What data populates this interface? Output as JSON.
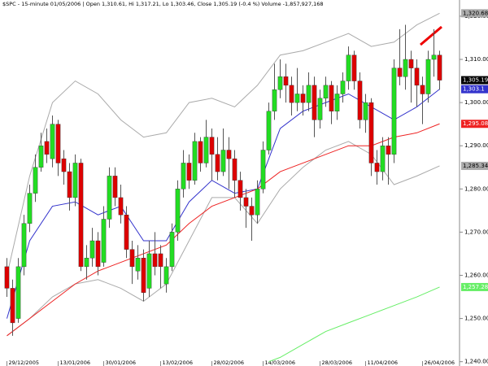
{
  "chart_data": {
    "type": "candlestick",
    "title": "$SPC - 15-minute 01/05/2006 | Open 1,310.61, Hi 1,317.21, Lo 1,303.46, Close 1,305.19 (-0.4 %) Volume -1,857,927,168",
    "categories": [
      "29/12/2005",
      null,
      null,
      null,
      null,
      null,
      null,
      null,
      null,
      "13/01/2006",
      null,
      null,
      null,
      null,
      null,
      null,
      null,
      "30/01/2006",
      null,
      null,
      null,
      null,
      null,
      null,
      null,
      null,
      null,
      "13/02/2006",
      null,
      null,
      null,
      null,
      null,
      null,
      null,
      null,
      "28/02/2006",
      null,
      null,
      null,
      null,
      null,
      null,
      null,
      null,
      "14/03/2006",
      null,
      null,
      null,
      null,
      null,
      null,
      null,
      null,
      null,
      "28/03/2006",
      null,
      null,
      null,
      null,
      null,
      null,
      null,
      "11/04/2006",
      null,
      null,
      null,
      null,
      null,
      null,
      null,
      null,
      null,
      "26/04/2006",
      null,
      null,
      null
    ],
    "open": [
      1262,
      1257,
      1250,
      1262,
      1272,
      1279,
      1285,
      1291,
      1287,
      1295,
      1287,
      1284,
      1278,
      1286,
      1262,
      1264,
      1268,
      1263,
      1273,
      1283,
      1278,
      1274,
      1266,
      1261,
      1264,
      1257,
      1265,
      1265,
      1258,
      1262,
      1270,
      1280,
      1286,
      1282,
      1291,
      1286,
      1292,
      1288,
      1284,
      1289,
      1287,
      1282,
      1278,
      1276,
      1274,
      1280,
      1289,
      1298,
      1303,
      1306,
      1304,
      1300,
      1302,
      1300,
      1304,
      1296,
      1301,
      1304,
      1298,
      1302,
      1305,
      1311,
      1305,
      1296,
      1300,
      1286,
      1284,
      1290,
      1288,
      1308,
      1306,
      1310,
      1308,
      1304,
      1302,
      1310,
      1311
    ],
    "high": [
      1264,
      1259,
      1264,
      1274,
      1281,
      1288,
      1293,
      1294,
      1297,
      1296,
      1289,
      1286,
      1288,
      1287,
      1267,
      1271,
      1270,
      1276,
      1285,
      1285,
      1281,
      1276,
      1268,
      1267,
      1266,
      1268,
      1270,
      1267,
      1264,
      1272,
      1282,
      1289,
      1288,
      1293,
      1292,
      1296,
      1294,
      1292,
      1294,
      1292,
      1289,
      1284,
      1280,
      1278,
      1282,
      1291,
      1300,
      1309,
      1310,
      1309,
      1306,
      1308,
      1304,
      1307,
      1306,
      1303,
      1306,
      1305,
      1304,
      1307,
      1313,
      1312,
      1307,
      1302,
      1301,
      1289,
      1292,
      1292,
      1310,
      1317,
      1318,
      1312,
      1310,
      1306,
      1312,
      1317,
      1312
    ],
    "low": [
      1255,
      1246,
      1249,
      1260,
      1270,
      1277,
      1284,
      1286,
      1285,
      1283,
      1281,
      1275,
      1276,
      1261,
      1259,
      1262,
      1260,
      1262,
      1271,
      1276,
      1272,
      1264,
      1258,
      1259,
      1254,
      1255,
      1260,
      1257,
      1256,
      1261,
      1268,
      1278,
      1280,
      1281,
      1284,
      1285,
      1282,
      1282,
      1283,
      1280,
      1278,
      1275,
      1271,
      1268,
      1272,
      1279,
      1288,
      1296,
      1301,
      1300,
      1297,
      1298,
      1297,
      1298,
      1292,
      1294,
      1299,
      1295,
      1296,
      1300,
      1303,
      1303,
      1294,
      1293,
      1283,
      1281,
      1282,
      1281,
      1286,
      1304,
      1303,
      1300,
      1299,
      1295,
      1300,
      1306,
      1303
    ],
    "close": [
      1257,
      1249,
      1262,
      1272,
      1279,
      1285,
      1290,
      1288,
      1295,
      1286,
      1284,
      1278,
      1286,
      1262,
      1264,
      1268,
      1262,
      1273,
      1283,
      1278,
      1274,
      1266,
      1262,
      1264,
      1256,
      1265,
      1262,
      1262,
      1262,
      1270,
      1280,
      1286,
      1282,
      1291,
      1286,
      1292,
      1288,
      1284,
      1289,
      1287,
      1282,
      1278,
      1276,
      1274,
      1280,
      1289,
      1298,
      1303,
      1306,
      1304,
      1300,
      1302,
      1300,
      1304,
      1296,
      1301,
      1304,
      1298,
      1302,
      1305,
      1311,
      1305,
      1296,
      1300,
      1286,
      1284,
      1290,
      1288,
      1308,
      1306,
      1310,
      1308,
      1304,
      1302,
      1310,
      1311,
      1305.19
    ],
    "close_label": "1,305.19",
    "up_color": "#22dd22",
    "down_color": "#dd0000",
    "overlays": [
      {
        "color": "#aaaaaa",
        "x": [
          0,
          4,
          8,
          12,
          16,
          20,
          24,
          28,
          32,
          36,
          40,
          44,
          48,
          52,
          56,
          60,
          64,
          68,
          72,
          76
        ],
        "values": [
          1260,
          1283,
          1300,
          1305,
          1302,
          1296,
          1292,
          1293,
          1300,
          1301,
          1299,
          1304,
          1311,
          1312,
          1314,
          1316,
          1313,
          1314,
          1318,
          1320.68
        ],
        "last_label": "1,320.68"
      },
      {
        "color": "#aaaaaa",
        "x": [
          0,
          4,
          8,
          12,
          16,
          20,
          24,
          28,
          32,
          36,
          40,
          44,
          48,
          52,
          56,
          60,
          64,
          68,
          72,
          76
        ],
        "values": [
          1246,
          1250,
          1255,
          1258,
          1259,
          1257,
          1254,
          1258,
          1268,
          1278,
          1278,
          1272,
          1280,
          1285,
          1289,
          1291,
          1288,
          1281,
          1283,
          1285.34
        ],
        "last_label": "1,285.34"
      },
      {
        "color": "#3333cc",
        "x": [
          0,
          4,
          8,
          12,
          16,
          20,
          24,
          28,
          32,
          36,
          40,
          44,
          48,
          52,
          56,
          60,
          64,
          68,
          72,
          76
        ],
        "values": [
          1250,
          1268,
          1276,
          1277,
          1274,
          1276,
          1268,
          1268,
          1277,
          1282,
          1279,
          1280,
          1294,
          1298,
          1300,
          1302,
          1299,
          1296,
          1299,
          1303.1
        ],
        "last_label": "1,303.1"
      },
      {
        "color": "#ee2222",
        "x": [
          0,
          4,
          8,
          12,
          16,
          20,
          24,
          28,
          32,
          36,
          40,
          44,
          48,
          52,
          56,
          60,
          64,
          68,
          72,
          76
        ],
        "values": [
          1246,
          1250,
          1254,
          1258,
          1261,
          1263,
          1265,
          1267,
          1272,
          1276,
          1278,
          1280,
          1284,
          1286,
          1288,
          1290,
          1290,
          1292,
          1293,
          1295.08
        ],
        "last_label": "1,295.08"
      },
      {
        "color": "#66ee66",
        "x": [
          46,
          48,
          52,
          56,
          60,
          64,
          68,
          72,
          76
        ],
        "values": [
          1240,
          1241,
          1244,
          1247,
          1249,
          1251,
          1253,
          1255,
          1257.28
        ],
        "last_label": "1,257.28"
      }
    ],
    "ylim": [
      1239,
      1323
    ],
    "yticks": [
      {
        "value": 1240,
        "label": "1,240.00"
      },
      {
        "value": 1250,
        "label": "1,250.00"
      },
      {
        "value": 1260,
        "label": "1,260.00"
      },
      {
        "value": 1270,
        "label": "1,270.00"
      },
      {
        "value": 1280,
        "label": "1,280.00"
      },
      {
        "value": 1290,
        "label": "1,290.00"
      },
      {
        "value": 1300,
        "label": "1,300.00"
      },
      {
        "value": 1310,
        "label": "1,310.00"
      },
      {
        "value": 1320,
        "label": "1,320.00"
      }
    ],
    "grid": false
  }
}
